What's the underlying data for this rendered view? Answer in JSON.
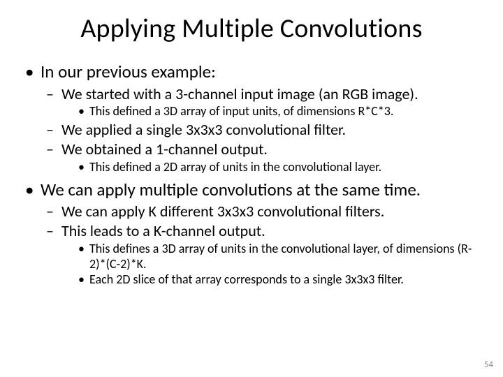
{
  "title": "Applying Multiple Convolutions",
  "l1_a": "In our previous example:",
  "l2_a1": "We started with a 3-channel input image (an RGB image).",
  "l3_a1a": "This defined a 3D array of input units, of dimensions R*C*3.",
  "l2_a2": "We applied a single 3x3x3 convolutional filter.",
  "l2_a3": "We obtained a 1-channel output.",
  "l3_a3a": "This defined a 2D array of units in the convolutional layer.",
  "l1_b": "We can apply multiple convolutions at the same time.",
  "l2_b1": "We can apply K different 3x3x3 convolutional filters.",
  "l2_b2": "This leads to a K-channel output.",
  "l3_b2a": "This defines a 3D array of units in the convolutional layer, of dimensions (R-2)*(C-2)*K.",
  "l3_b2b": "Each 2D slice of that array corresponds to a single 3x3x3 filter.",
  "page_number": "54",
  "style": {
    "title_fontsize": 38,
    "l1_fontsize": 25,
    "l2_fontsize": 22,
    "l3_fontsize": 18,
    "pagenum_fontsize": 13,
    "text_color": "#000000",
    "pagenum_color": "#8c8c8c",
    "background_color": "#ffffff"
  }
}
